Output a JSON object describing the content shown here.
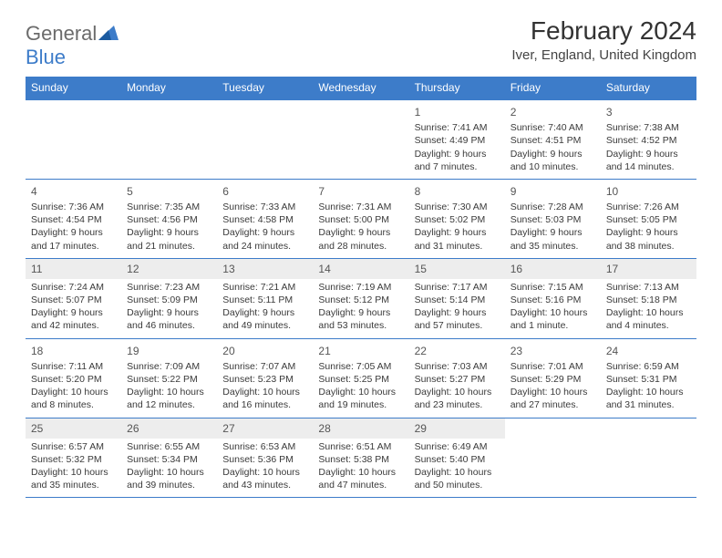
{
  "brand": {
    "part1": "General",
    "part2": "Blue"
  },
  "title": "February 2024",
  "location": "Iver, England, United Kingdom",
  "colors": {
    "header_bg": "#3d7cc9",
    "header_text": "#ffffff",
    "border": "#3d7cc9",
    "daynum_gray_bg": "#ededed",
    "body_text": "#3a3a3a"
  },
  "day_headers": [
    "Sunday",
    "Monday",
    "Tuesday",
    "Wednesday",
    "Thursday",
    "Friday",
    "Saturday"
  ],
  "weeks": [
    [
      null,
      null,
      null,
      null,
      {
        "num": "1",
        "sunrise": "7:41 AM",
        "sunset": "4:49 PM",
        "daylight": "9 hours and 7 minutes."
      },
      {
        "num": "2",
        "sunrise": "7:40 AM",
        "sunset": "4:51 PM",
        "daylight": "9 hours and 10 minutes."
      },
      {
        "num": "3",
        "sunrise": "7:38 AM",
        "sunset": "4:52 PM",
        "daylight": "9 hours and 14 minutes."
      }
    ],
    [
      {
        "num": "4",
        "sunrise": "7:36 AM",
        "sunset": "4:54 PM",
        "daylight": "9 hours and 17 minutes."
      },
      {
        "num": "5",
        "sunrise": "7:35 AM",
        "sunset": "4:56 PM",
        "daylight": "9 hours and 21 minutes."
      },
      {
        "num": "6",
        "sunrise": "7:33 AM",
        "sunset": "4:58 PM",
        "daylight": "9 hours and 24 minutes."
      },
      {
        "num": "7",
        "sunrise": "7:31 AM",
        "sunset": "5:00 PM",
        "daylight": "9 hours and 28 minutes."
      },
      {
        "num": "8",
        "sunrise": "7:30 AM",
        "sunset": "5:02 PM",
        "daylight": "9 hours and 31 minutes."
      },
      {
        "num": "9",
        "sunrise": "7:28 AM",
        "sunset": "5:03 PM",
        "daylight": "9 hours and 35 minutes."
      },
      {
        "num": "10",
        "sunrise": "7:26 AM",
        "sunset": "5:05 PM",
        "daylight": "9 hours and 38 minutes."
      }
    ],
    [
      {
        "num": "11",
        "sunrise": "7:24 AM",
        "sunset": "5:07 PM",
        "daylight": "9 hours and 42 minutes.",
        "gray": true
      },
      {
        "num": "12",
        "sunrise": "7:23 AM",
        "sunset": "5:09 PM",
        "daylight": "9 hours and 46 minutes.",
        "gray": true
      },
      {
        "num": "13",
        "sunrise": "7:21 AM",
        "sunset": "5:11 PM",
        "daylight": "9 hours and 49 minutes.",
        "gray": true
      },
      {
        "num": "14",
        "sunrise": "7:19 AM",
        "sunset": "5:12 PM",
        "daylight": "9 hours and 53 minutes.",
        "gray": true
      },
      {
        "num": "15",
        "sunrise": "7:17 AM",
        "sunset": "5:14 PM",
        "daylight": "9 hours and 57 minutes.",
        "gray": true
      },
      {
        "num": "16",
        "sunrise": "7:15 AM",
        "sunset": "5:16 PM",
        "daylight": "10 hours and 1 minute.",
        "gray": true
      },
      {
        "num": "17",
        "sunrise": "7:13 AM",
        "sunset": "5:18 PM",
        "daylight": "10 hours and 4 minutes.",
        "gray": true
      }
    ],
    [
      {
        "num": "18",
        "sunrise": "7:11 AM",
        "sunset": "5:20 PM",
        "daylight": "10 hours and 8 minutes."
      },
      {
        "num": "19",
        "sunrise": "7:09 AM",
        "sunset": "5:22 PM",
        "daylight": "10 hours and 12 minutes."
      },
      {
        "num": "20",
        "sunrise": "7:07 AM",
        "sunset": "5:23 PM",
        "daylight": "10 hours and 16 minutes."
      },
      {
        "num": "21",
        "sunrise": "7:05 AM",
        "sunset": "5:25 PM",
        "daylight": "10 hours and 19 minutes."
      },
      {
        "num": "22",
        "sunrise": "7:03 AM",
        "sunset": "5:27 PM",
        "daylight": "10 hours and 23 minutes."
      },
      {
        "num": "23",
        "sunrise": "7:01 AM",
        "sunset": "5:29 PM",
        "daylight": "10 hours and 27 minutes."
      },
      {
        "num": "24",
        "sunrise": "6:59 AM",
        "sunset": "5:31 PM",
        "daylight": "10 hours and 31 minutes."
      }
    ],
    [
      {
        "num": "25",
        "sunrise": "6:57 AM",
        "sunset": "5:32 PM",
        "daylight": "10 hours and 35 minutes.",
        "gray": true
      },
      {
        "num": "26",
        "sunrise": "6:55 AM",
        "sunset": "5:34 PM",
        "daylight": "10 hours and 39 minutes.",
        "gray": true
      },
      {
        "num": "27",
        "sunrise": "6:53 AM",
        "sunset": "5:36 PM",
        "daylight": "10 hours and 43 minutes.",
        "gray": true
      },
      {
        "num": "28",
        "sunrise": "6:51 AM",
        "sunset": "5:38 PM",
        "daylight": "10 hours and 47 minutes.",
        "gray": true
      },
      {
        "num": "29",
        "sunrise": "6:49 AM",
        "sunset": "5:40 PM",
        "daylight": "10 hours and 50 minutes.",
        "gray": true
      },
      null,
      null
    ]
  ],
  "labels": {
    "sunrise": "Sunrise:",
    "sunset": "Sunset:",
    "daylight": "Daylight:"
  }
}
